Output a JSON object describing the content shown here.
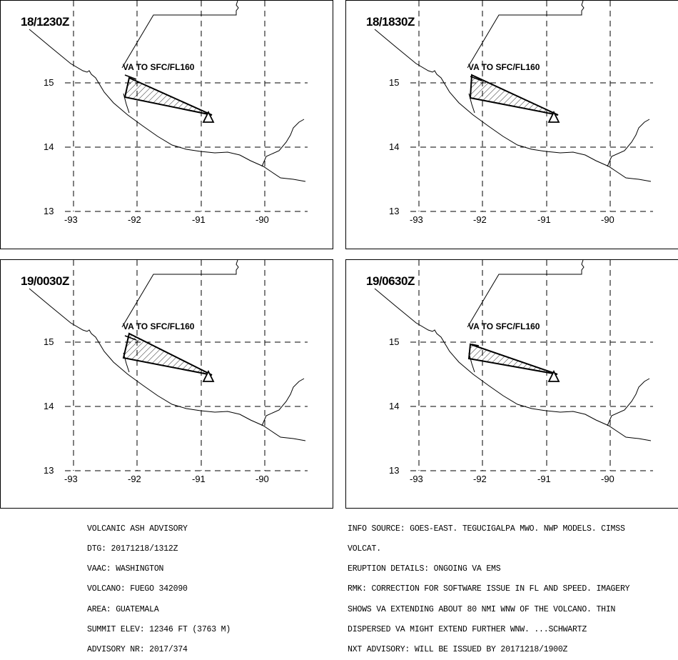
{
  "panels": [
    {
      "time": "18/1230Z",
      "va_label": "VA TO SFC/FL160"
    },
    {
      "time": "18/1830Z",
      "va_label": "VA TO SFC/FL160"
    },
    {
      "time": "19/0030Z",
      "va_label": "VA TO SFC/FL160"
    },
    {
      "time": "19/0630Z",
      "va_label": "VA TO SFC/FL160"
    }
  ],
  "axes": {
    "y_labels": [
      "15",
      "14",
      "13"
    ],
    "x_labels": [
      "-93",
      "-92",
      "-91",
      "-90"
    ]
  },
  "advisory_left": [
    "VOLCANIC ASH ADVISORY",
    "DTG: 20171218/1312Z",
    "VAAC: WASHINGTON",
    "VOLCANO: FUEGO 342090",
    "AREA: GUATEMALA",
    "SUMMIT ELEV: 12346 FT (3763 M)",
    "ADVISORY NR: 2017/374"
  ],
  "advisory_right": [
    "INFO SOURCE: GOES-EAST. TEGUCIGALPA MWO. NWP MODELS. CIMSS",
    "VOLCAT.",
    "ERUPTION DETAILS: ONGOING VA EMS",
    "RMK: CORRECTION FOR SOFTWARE ISSUE IN FL AND SPEED. IMAGERY",
    "SHOWS VA EXTENDING ABOUT 80 NMI WNW OF THE VOLCANO. THIN",
    "DISPERSED VA MIGHT EXTEND FURTHER WNW. ...SCHWARTZ",
    "NXT ADVISORY: WILL BE ISSUED BY 20171218/1900Z"
  ]
}
